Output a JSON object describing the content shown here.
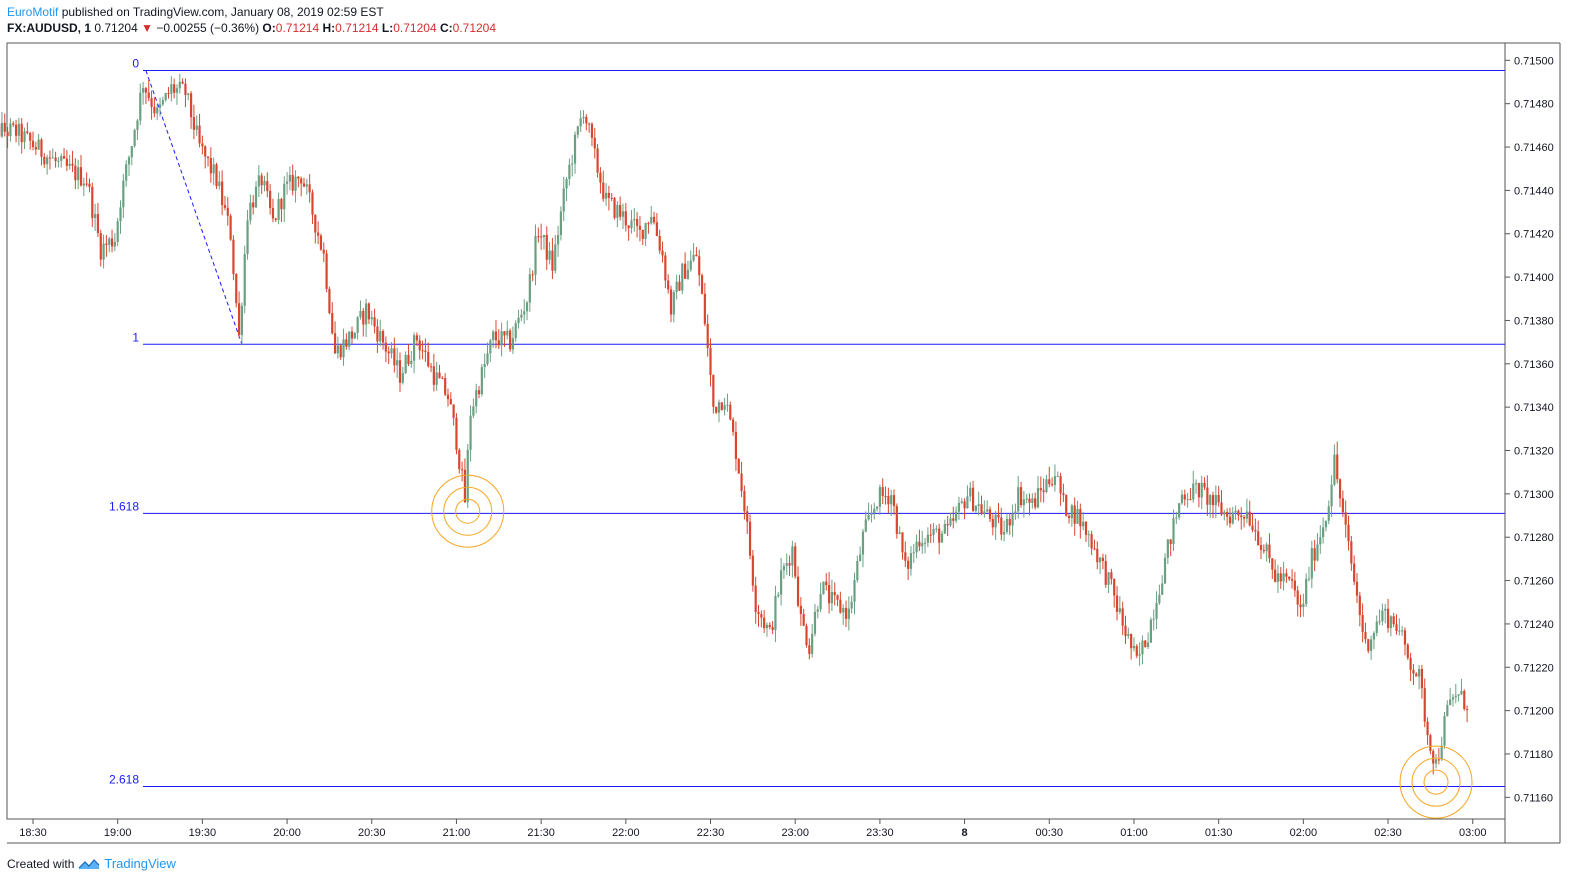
{
  "header": {
    "author": "EuroMotif",
    "published": "published on TradingView.com, January 08, 2019 02:59 EST",
    "symbol": "FX:AUDUSD, 1",
    "last": "0.71204",
    "change": "−0.00255 (−0.36%)",
    "o_label": "O:",
    "o_value": "0.71214",
    "h_label": "H:",
    "h_value": "0.71214",
    "l_label": "L:",
    "l_value": "0.71204",
    "c_label": "C:",
    "c_value": "0.71204"
  },
  "footer": {
    "created_with": "Created with",
    "brand": "TradingView"
  },
  "colors": {
    "up": "#6aa082",
    "down": "#d9462f",
    "fib": "#1a1aff",
    "circle": "#f5a623",
    "border": "#555555"
  },
  "chart_data": {
    "type": "candlestick",
    "ylim": [
      0.7115,
      0.71508
    ],
    "y_ticks": [
      "0.71500",
      "0.71480",
      "0.71460",
      "0.71440",
      "0.71420",
      "0.71400",
      "0.71380",
      "0.71360",
      "0.71340",
      "0.71320",
      "0.71300",
      "0.71280",
      "0.71260",
      "0.71240",
      "0.71220",
      "0.71200",
      "0.71180",
      "0.71160"
    ],
    "x_ticks": [
      "18:30",
      "19:00",
      "19:30",
      "20:00",
      "20:30",
      "21:00",
      "21:30",
      "22:00",
      "22:30",
      "23:00",
      "23:30",
      "8",
      "00:30",
      "01:00",
      "01:30",
      "02:00",
      "02:30",
      "03:00"
    ],
    "fib_levels": [
      {
        "label": "0",
        "price": 0.714953
      },
      {
        "label": "1",
        "price": 0.71369
      },
      {
        "label": "1.618",
        "price": 0.71291
      },
      {
        "label": "2.618",
        "price": 0.71165
      }
    ],
    "fib_anchor": {
      "start_time": "19:10",
      "end_time": "19:44"
    },
    "highlight_circles": [
      {
        "time": "21:04",
        "price": 0.71292
      },
      {
        "time": "02:47",
        "price": 0.71167
      }
    ],
    "path": [
      [
        "18:13",
        0.71468
      ],
      [
        "18:25",
        0.71467
      ],
      [
        "18:40",
        0.71452
      ],
      [
        "18:50",
        0.71445
      ],
      [
        "18:55",
        0.71413
      ],
      [
        "19:00",
        0.71418
      ],
      [
        "19:02",
        0.71436
      ],
      [
        "19:06",
        0.71462
      ],
      [
        "19:10",
        0.7149
      ],
      [
        "19:15",
        0.71475
      ],
      [
        "19:20",
        0.71487
      ],
      [
        "19:25",
        0.71485
      ],
      [
        "19:30",
        0.7146
      ],
      [
        "19:36",
        0.71445
      ],
      [
        "19:41",
        0.7142
      ],
      [
        "19:44",
        0.71372
      ],
      [
        "19:47",
        0.7143
      ],
      [
        "19:52",
        0.71445
      ],
      [
        "19:56",
        0.71425
      ],
      [
        "20:00",
        0.7144
      ],
      [
        "20:06",
        0.71447
      ],
      [
        "20:10",
        0.7143
      ],
      [
        "20:14",
        0.7141
      ],
      [
        "20:18",
        0.71365
      ],
      [
        "20:25",
        0.71375
      ],
      [
        "20:29",
        0.71385
      ],
      [
        "20:35",
        0.7137
      ],
      [
        "20:41",
        0.71355
      ],
      [
        "20:47",
        0.71372
      ],
      [
        "20:53",
        0.71355
      ],
      [
        "20:58",
        0.71345
      ],
      [
        "21:01",
        0.71325
      ],
      [
        "21:04",
        0.71297
      ],
      [
        "21:06",
        0.71338
      ],
      [
        "21:10",
        0.71355
      ],
      [
        "21:14",
        0.71372
      ],
      [
        "21:20",
        0.7137
      ],
      [
        "21:26",
        0.7139
      ],
      [
        "21:30",
        0.71422
      ],
      [
        "21:35",
        0.71405
      ],
      [
        "21:40",
        0.71445
      ],
      [
        "21:46",
        0.71478
      ],
      [
        "21:50",
        0.71455
      ],
      [
        "21:54",
        0.71435
      ],
      [
        "22:00",
        0.71428
      ],
      [
        "22:06",
        0.7142
      ],
      [
        "22:10",
        0.7143
      ],
      [
        "22:14",
        0.7141
      ],
      [
        "22:17",
        0.71385
      ],
      [
        "22:21",
        0.71402
      ],
      [
        "22:26",
        0.7141
      ],
      [
        "22:29",
        0.7138
      ],
      [
        "22:32",
        0.7134
      ],
      [
        "22:36",
        0.71345
      ],
      [
        "22:40",
        0.7132
      ],
      [
        "22:43",
        0.71295
      ],
      [
        "22:47",
        0.7125
      ],
      [
        "22:52",
        0.71235
      ],
      [
        "22:56",
        0.71262
      ],
      [
        "23:00",
        0.71275
      ],
      [
        "23:03",
        0.71242
      ],
      [
        "23:06",
        0.7123
      ],
      [
        "23:10",
        0.71258
      ],
      [
        "23:14",
        0.7125
      ],
      [
        "23:20",
        0.71245
      ],
      [
        "23:25",
        0.7128
      ],
      [
        "23:30",
        0.71298
      ],
      [
        "23:35",
        0.713
      ],
      [
        "23:40",
        0.71265
      ],
      [
        "23:45",
        0.7128
      ],
      [
        "23:55",
        0.71282
      ],
      [
        "00:02",
        0.713
      ],
      [
        "00:09",
        0.7129
      ],
      [
        "00:15",
        0.71282
      ],
      [
        "00:20",
        0.713
      ],
      [
        "00:25",
        0.71295
      ],
      [
        "00:30",
        0.71305
      ],
      [
        "00:33",
        0.7131
      ],
      [
        "00:36",
        0.71295
      ],
      [
        "00:41",
        0.7129
      ],
      [
        "00:46",
        0.71278
      ],
      [
        "00:52",
        0.7126
      ],
      [
        "00:57",
        0.7124
      ],
      [
        "01:02",
        0.71222
      ],
      [
        "01:06",
        0.71236
      ],
      [
        "01:10",
        0.71258
      ],
      [
        "01:14",
        0.7128
      ],
      [
        "01:18",
        0.713
      ],
      [
        "01:24",
        0.71302
      ],
      [
        "01:29",
        0.71296
      ],
      [
        "01:34",
        0.7129
      ],
      [
        "01:41",
        0.71292
      ],
      [
        "01:46",
        0.71278
      ],
      [
        "01:51",
        0.71262
      ],
      [
        "01:57",
        0.71258
      ],
      [
        "02:00",
        0.71245
      ],
      [
        "02:04",
        0.7127
      ],
      [
        "02:09",
        0.7129
      ],
      [
        "02:12",
        0.71315
      ],
      [
        "02:15",
        0.7129
      ],
      [
        "02:19",
        0.7126
      ],
      [
        "02:23",
        0.7123
      ],
      [
        "02:29",
        0.71245
      ],
      [
        "02:34",
        0.7124
      ],
      [
        "02:38",
        0.71225
      ],
      [
        "02:42",
        0.71215
      ],
      [
        "02:45",
        0.7119
      ],
      [
        "02:48",
        0.71175
      ],
      [
        "02:52",
        0.712
      ],
      [
        "02:55",
        0.71208
      ],
      [
        "02:58",
        0.71204
      ]
    ]
  }
}
